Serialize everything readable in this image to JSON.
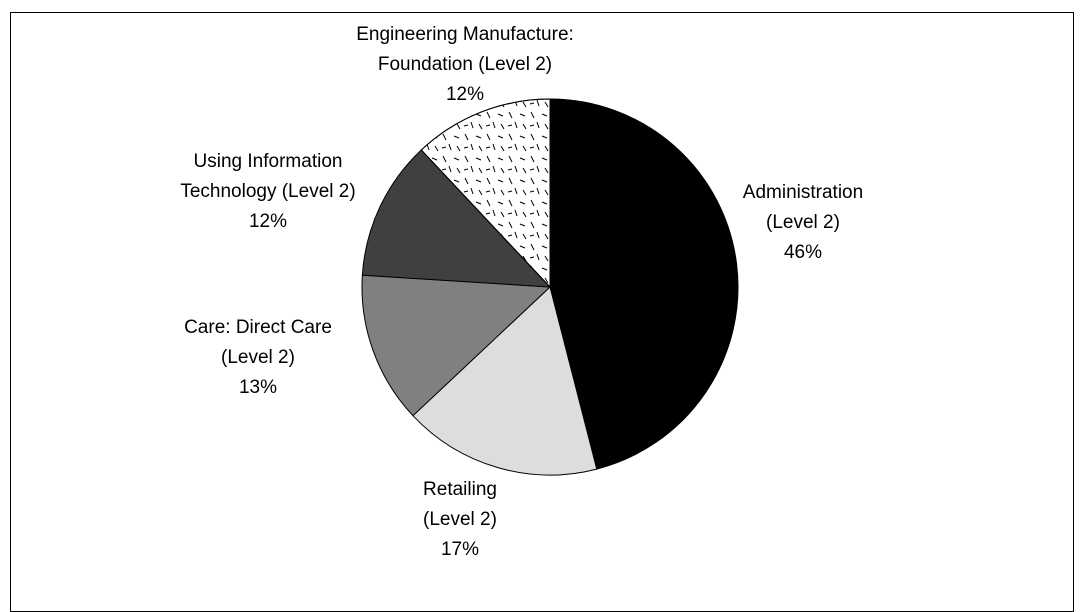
{
  "chart_data": {
    "type": "pie",
    "categories": [
      "Administration (Level 2)",
      "Retailing (Level 2)",
      "Care: Direct Care (Level 2)",
      "Using Information Technology (Level 2)",
      "Engineering Manufacture: Foundation (Level 2)"
    ],
    "values": [
      46,
      17,
      13,
      12,
      12
    ],
    "value_labels": [
      "46%",
      "17%",
      "13%",
      "12%",
      "12%"
    ],
    "colors": [
      "#000000",
      "#dddddd",
      "#808080",
      "#404040",
      "#ffffff"
    ]
  }
}
